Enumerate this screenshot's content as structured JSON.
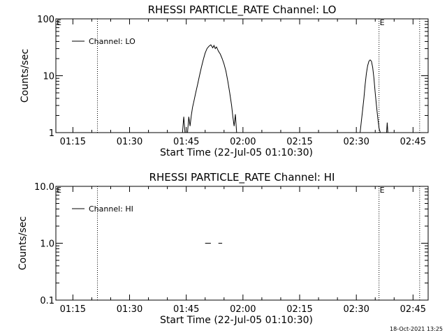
{
  "chart_data": [
    {
      "type": "line",
      "title": "RHESSI PARTICLE_RATE Channel: LO",
      "xlabel": "Start Time (22-Jul-05 01:10:30)",
      "ylabel": "Counts/sec",
      "y_scale": "log",
      "ylim": [
        1,
        100
      ],
      "xlim": [
        "01:10:30",
        "02:49:00"
      ],
      "x_ticks": [
        "01:15",
        "01:30",
        "01:45",
        "02:00",
        "02:15",
        "02:30",
        "02:45"
      ],
      "y_ticks": [
        "1",
        "10",
        "100"
      ],
      "legend": {
        "position": "top-left",
        "entries": [
          "Channel: LO"
        ]
      },
      "markers": [
        {
          "label": "E",
          "time": "01:10:30"
        },
        {
          "label": "",
          "time": "01:21:30"
        },
        {
          "label": "E",
          "time": "02:36:00"
        },
        {
          "label": "",
          "time": "02:46:45"
        }
      ],
      "series": [
        {
          "name": "Channel: LO",
          "points": [
            [
              "01:44:00",
              1.0
            ],
            [
              "01:44:20",
              1.9
            ],
            [
              "01:44:40",
              1.0
            ],
            [
              "01:45:20",
              1.0
            ],
            [
              "01:45:40",
              1.9
            ],
            [
              "01:46:00",
              1.3
            ],
            [
              "01:46:20",
              2.0
            ],
            [
              "01:46:40",
              2.8
            ],
            [
              "01:47:00",
              3.5
            ],
            [
              "01:47:30",
              5.0
            ],
            [
              "01:48:00",
              7.0
            ],
            [
              "01:48:30",
              10.0
            ],
            [
              "01:49:00",
              14.0
            ],
            [
              "01:49:30",
              19.0
            ],
            [
              "01:50:00",
              25.0
            ],
            [
              "01:50:30",
              30.0
            ],
            [
              "01:51:00",
              33.0
            ],
            [
              "01:51:30",
              35.0
            ],
            [
              "01:52:00",
              31.0
            ],
            [
              "01:52:20",
              34.0
            ],
            [
              "01:52:40",
              30.0
            ],
            [
              "01:53:00",
              32.0
            ],
            [
              "01:53:30",
              27.0
            ],
            [
              "01:54:00",
              24.0
            ],
            [
              "01:54:30",
              20.0
            ],
            [
              "01:55:00",
              16.0
            ],
            [
              "01:55:30",
              12.0
            ],
            [
              "01:56:00",
              8.0
            ],
            [
              "01:56:30",
              5.0
            ],
            [
              "01:57:00",
              3.0
            ],
            [
              "01:57:20",
              1.9
            ],
            [
              "01:57:40",
              1.3
            ],
            [
              "01:58:00",
              2.1
            ],
            [
              "01:58:20",
              1.0
            ]
          ]
        },
        {
          "name": "Channel: LO",
          "points": [
            [
              "02:31:00",
              1.0
            ],
            [
              "02:31:20",
              1.6
            ],
            [
              "02:31:40",
              2.5
            ],
            [
              "02:32:00",
              4.0
            ],
            [
              "02:32:20",
              7.0
            ],
            [
              "02:32:40",
              11.0
            ],
            [
              "02:33:00",
              15.0
            ],
            [
              "02:33:20",
              18.0
            ],
            [
              "02:33:40",
              19.0
            ],
            [
              "02:34:00",
              18.0
            ],
            [
              "02:34:20",
              14.0
            ],
            [
              "02:34:40",
              9.0
            ],
            [
              "02:35:00",
              5.0
            ],
            [
              "02:35:20",
              3.0
            ],
            [
              "02:35:40",
              1.8
            ],
            [
              "02:36:00",
              1.2
            ],
            [
              "02:36:20",
              1.0
            ]
          ]
        },
        {
          "name": "Channel: LO",
          "points": [
            [
              "02:38:00",
              1.0
            ],
            [
              "02:38:10",
              1.5
            ],
            [
              "02:38:20",
              1.0
            ]
          ]
        }
      ]
    },
    {
      "type": "line",
      "title": "RHESSI PARTICLE_RATE Channel: HI",
      "xlabel": "Start Time (22-Jul-05 01:10:30)",
      "ylabel": "Counts/sec",
      "y_scale": "log",
      "ylim": [
        0.1,
        10.0
      ],
      "xlim": [
        "01:10:30",
        "02:49:00"
      ],
      "x_ticks": [
        "01:15",
        "01:30",
        "01:45",
        "02:00",
        "02:15",
        "02:30",
        "02:45"
      ],
      "y_ticks": [
        "0.1",
        "1.0",
        "10.0"
      ],
      "legend": {
        "position": "top-left",
        "entries": [
          "Channel: HI"
        ]
      },
      "markers": [
        {
          "label": "E",
          "time": "01:10:30"
        },
        {
          "label": "",
          "time": "01:21:30"
        },
        {
          "label": "E",
          "time": "02:36:00"
        },
        {
          "label": "",
          "time": "02:46:45"
        }
      ],
      "series": [
        {
          "name": "Channel: HI",
          "points": [
            [
              "01:50:00",
              1.0
            ],
            [
              "01:51:30",
              1.0
            ]
          ]
        },
        {
          "name": "Channel: HI",
          "points": [
            [
              "01:53:30",
              1.0
            ],
            [
              "01:54:30",
              1.0
            ]
          ]
        }
      ]
    }
  ],
  "footer": {
    "timestamp": "18-Oct-2021 13:25"
  }
}
